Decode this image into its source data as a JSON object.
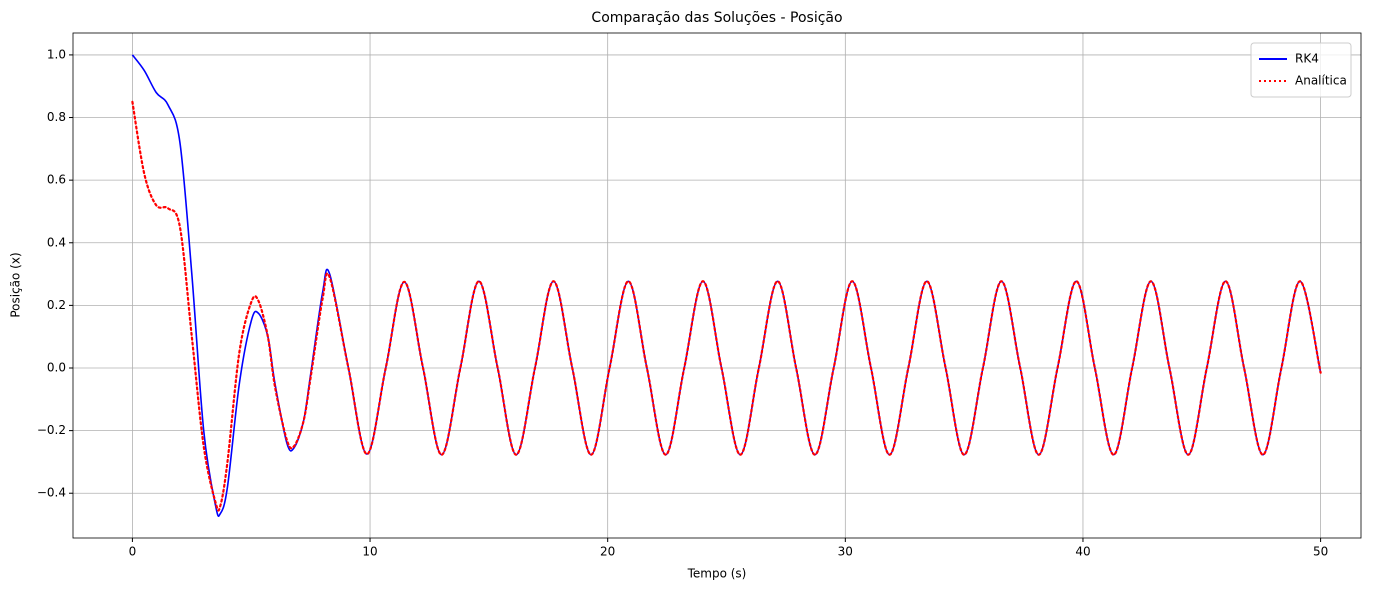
{
  "chart_data": {
    "type": "line",
    "title": "Comparação das Soluções - Posição",
    "x_label": "Tempo (s)",
    "y_label": "Posição (x)",
    "x": [
      0,
      0.5,
      1,
      1.5,
      2,
      2.5,
      3,
      3.5,
      3.7,
      4,
      4.5,
      5,
      5.3,
      5.7,
      6,
      6.5,
      6.8,
      7.2,
      7.5,
      8,
      8.3,
      9.09,
      9.87,
      10.66,
      11.44,
      12.23,
      13.01,
      13.8,
      14.58,
      15.37,
      16.15,
      16.94,
      17.72,
      18.51,
      19.3,
      20.08,
      20.87,
      21.65,
      22.44,
      23.22,
      24.01,
      24.79,
      25.58,
      26.36,
      27.15,
      27.93,
      28.72,
      29.51,
      30.29,
      31.08,
      31.86,
      32.65,
      33.43,
      34.22,
      35.0,
      35.79,
      36.57,
      37.36,
      38.14,
      38.93,
      39.72,
      40.5,
      41.29,
      42.07,
      42.86,
      43.64,
      44.43,
      45.21,
      46.0,
      46.78,
      47.57,
      48.35,
      49.14,
      50
    ],
    "series": [
      {
        "name": "RK4",
        "color": "#0000ff",
        "linestyle": "solid",
        "values": [
          1.0,
          0.95,
          0.88,
          0.84,
          0.72,
          0.3,
          -0.2,
          -0.44,
          -0.465,
          -0.38,
          -0.05,
          0.15,
          0.175,
          0.1,
          -0.05,
          -0.24,
          -0.255,
          -0.17,
          -0.02,
          0.24,
          0.3,
          0,
          -0.275,
          0,
          0.275,
          0,
          -0.277,
          0,
          0.277,
          0,
          -0.277,
          0,
          0.277,
          0,
          -0.277,
          0,
          0.277,
          0,
          -0.277,
          0,
          0.277,
          0,
          -0.277,
          0,
          0.277,
          0,
          -0.277,
          0,
          0.277,
          0,
          -0.277,
          0,
          0.277,
          0,
          -0.277,
          0,
          0.277,
          0,
          -0.277,
          0,
          0.277,
          0,
          -0.277,
          0,
          0.277,
          0,
          -0.277,
          0,
          0.277,
          0,
          -0.277,
          0,
          0.277,
          -0.015
        ]
      },
      {
        "name": "Analítica",
        "color": "#ff0000",
        "linestyle": "dotted",
        "values": [
          0.85,
          0.62,
          0.52,
          0.51,
          0.45,
          0.1,
          -0.25,
          -0.43,
          -0.44,
          -0.3,
          0.05,
          0.21,
          0.215,
          0.1,
          -0.06,
          -0.23,
          -0.25,
          -0.17,
          -0.03,
          0.22,
          0.29,
          0,
          -0.275,
          0,
          0.275,
          0,
          -0.277,
          0,
          0.277,
          0,
          -0.277,
          0,
          0.277,
          0,
          -0.277,
          0,
          0.277,
          0,
          -0.277,
          0,
          0.277,
          0,
          -0.277,
          0,
          0.277,
          0,
          -0.277,
          0,
          0.277,
          0,
          -0.277,
          0,
          0.277,
          0,
          -0.277,
          0,
          0.277,
          0,
          -0.277,
          0,
          0.277,
          0,
          -0.277,
          0,
          0.277,
          0,
          -0.277,
          0,
          0.277,
          0,
          -0.277,
          0,
          0.277,
          -0.015
        ]
      }
    ],
    "xlim": [
      -2.5,
      51.7
    ],
    "ylim": [
      -0.543,
      1.07
    ],
    "xticks": [
      0,
      10,
      20,
      30,
      40,
      50
    ],
    "yticks": [
      {
        "value": -0.4,
        "label": "−0.4"
      },
      {
        "value": -0.2,
        "label": "−0.2"
      },
      {
        "value": 0,
        "label": "0.0"
      },
      0.2,
      0.4,
      0.6,
      0.8,
      {
        "value": 1,
        "label": "1.0"
      }
    ],
    "grid": true,
    "legend": "upper right"
  }
}
